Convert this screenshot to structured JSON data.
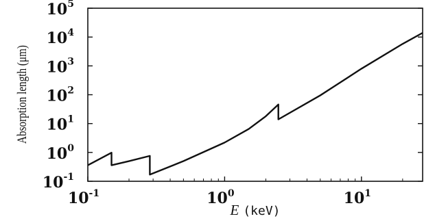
{
  "chart_data": {
    "type": "line",
    "title": "",
    "xlabel": "(keV)",
    "xlabel_symbol": "E",
    "ylabel": "Absorption length (μm)",
    "x_scale": "log",
    "y_scale": "log",
    "xlim": [
      0.1,
      28
    ],
    "ylim": [
      0.1,
      100000
    ],
    "grid": false,
    "legend": "none",
    "line_color": "#111111",
    "x_ticks": [
      {
        "value": 0.1,
        "base": "10",
        "exp": "-1"
      },
      {
        "value": 1,
        "base": "10",
        "exp": "0"
      },
      {
        "value": 10,
        "base": "10",
        "exp": "1"
      }
    ],
    "y_ticks": [
      {
        "value": 0.1,
        "base": "10",
        "exp": "-1"
      },
      {
        "value": 1,
        "base": "10",
        "exp": "0"
      },
      {
        "value": 10,
        "base": "10",
        "exp": "1"
      },
      {
        "value": 100,
        "base": "10",
        "exp": "2"
      },
      {
        "value": 1000,
        "base": "10",
        "exp": "3"
      },
      {
        "value": 10000,
        "base": "10",
        "exp": "4"
      },
      {
        "value": 100000,
        "base": "10",
        "exp": "5"
      }
    ],
    "series": [
      {
        "points": [
          [
            0.1,
            0.36
          ],
          [
            0.149,
            0.98
          ],
          [
            0.149,
            0.36
          ],
          [
            0.2,
            0.5
          ],
          [
            0.284,
            0.76
          ],
          [
            0.284,
            0.17
          ],
          [
            0.5,
            0.5
          ],
          [
            1.0,
            2.2
          ],
          [
            1.5,
            6.5
          ],
          [
            2.0,
            18
          ],
          [
            2.47,
            46
          ],
          [
            2.47,
            14
          ],
          [
            5.0,
            95
          ],
          [
            10.0,
            800
          ],
          [
            20.0,
            5800
          ],
          [
            28.0,
            14000
          ]
        ]
      }
    ]
  }
}
